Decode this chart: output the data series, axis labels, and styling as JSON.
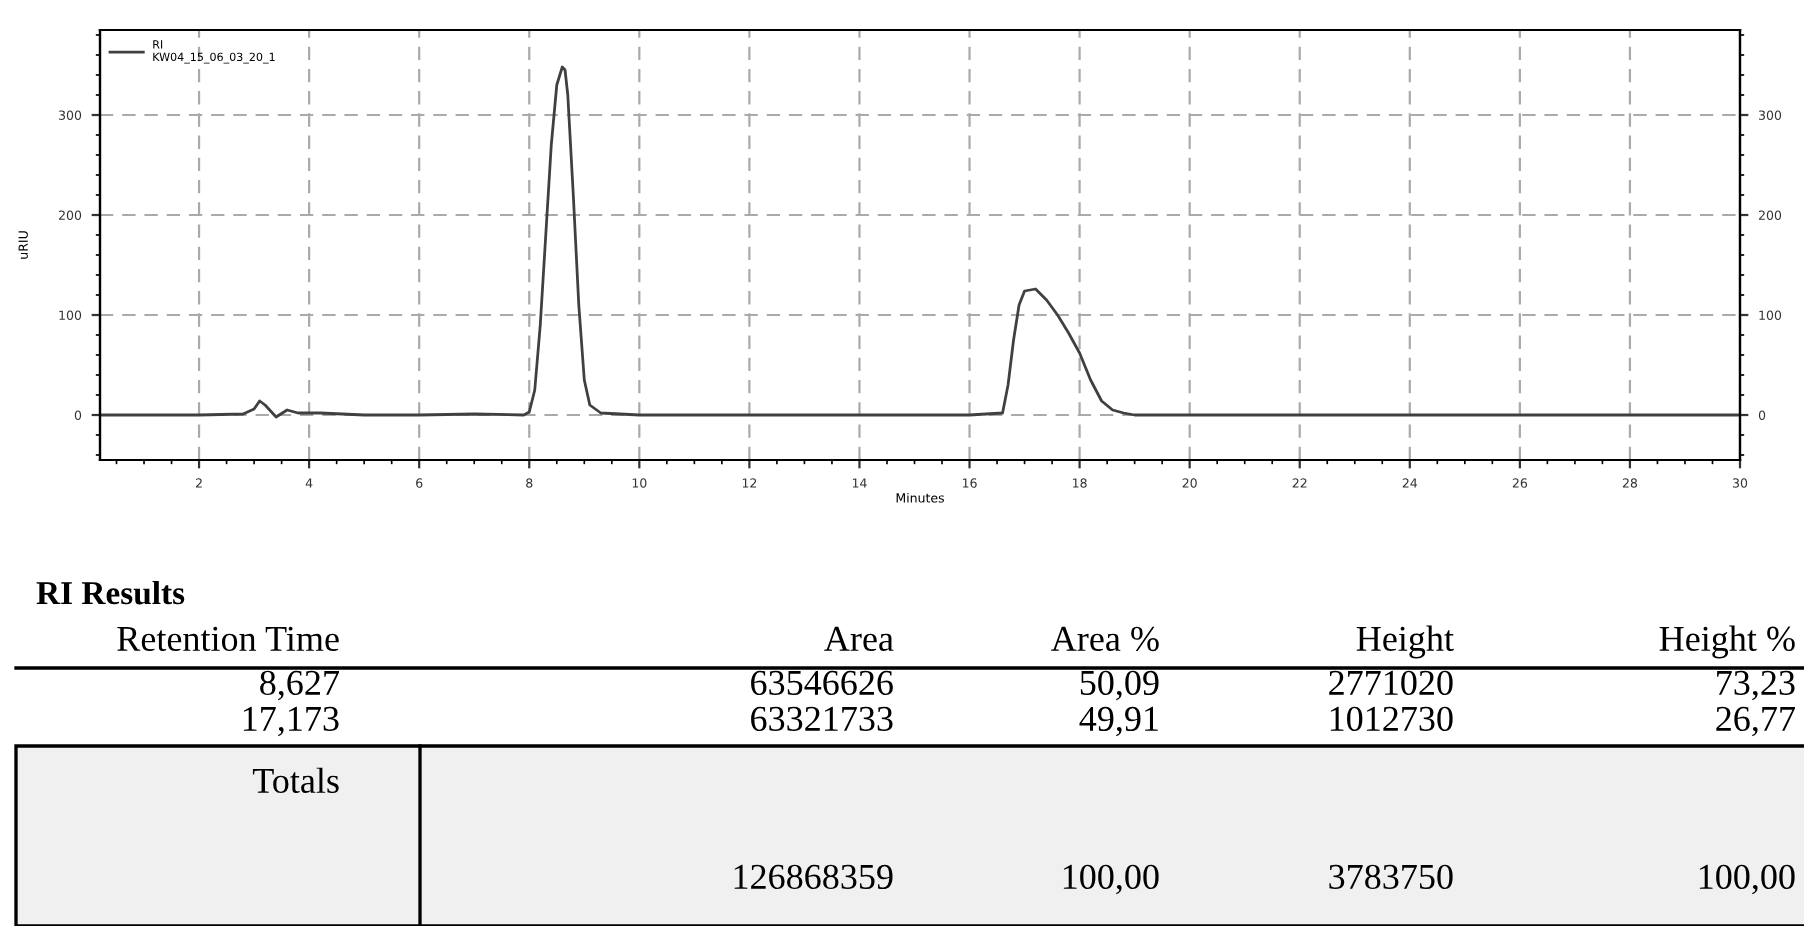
{
  "chart_data": {
    "type": "line",
    "xlabel": "Minutes",
    "ylabel": "uRIU",
    "series": [
      {
        "name": "RI\nKW04_15_06_03_20_1",
        "color": "#404040",
        "x": [
          0.2,
          1.0,
          2.0,
          2.8,
          3.0,
          3.1,
          3.2,
          3.4,
          3.6,
          3.8,
          4.2,
          5.0,
          6.0,
          7.0,
          7.9,
          8.0,
          8.1,
          8.2,
          8.3,
          8.4,
          8.5,
          8.6,
          8.65,
          8.7,
          8.8,
          8.9,
          9.0,
          9.1,
          9.3,
          10.0,
          12.0,
          14.0,
          16.0,
          16.6,
          16.7,
          16.8,
          16.9,
          17.0,
          17.2,
          17.4,
          17.6,
          17.8,
          18.0,
          18.2,
          18.4,
          18.6,
          18.8,
          19.0,
          19.5,
          21.0,
          24.0,
          27.0,
          30.0
        ],
        "values": [
          0,
          0,
          0,
          1,
          6,
          14,
          10,
          -2,
          5,
          2,
          2,
          0,
          0,
          1,
          0,
          3,
          25,
          90,
          180,
          270,
          330,
          348,
          345,
          320,
          220,
          110,
          35,
          10,
          2,
          0,
          0,
          0,
          0,
          2,
          30,
          75,
          110,
          124,
          126,
          115,
          100,
          82,
          62,
          35,
          14,
          5,
          2,
          0,
          0,
          0,
          0,
          0,
          0
        ]
      }
    ],
    "xlim": [
      0.2,
      30
    ],
    "xticks": [
      2,
      4,
      6,
      8,
      10,
      12,
      14,
      16,
      18,
      20,
      22,
      24,
      26,
      28,
      30
    ],
    "ylim": [
      -45,
      385
    ],
    "yticks": [
      0,
      100,
      200,
      300
    ],
    "y2lim": [
      -45,
      385
    ],
    "y2ticks": [
      0,
      100,
      200,
      300
    ],
    "grid": true,
    "legend": "top left",
    "line_style": "solid",
    "marker": "none",
    "annotations": [
      "RI Results",
      "Retention Time",
      "Area",
      "Area %",
      "Height",
      "Height %",
      "8,627",
      "63546626",
      "50,09",
      "2771020",
      "73,23",
      "17,173",
      "63321733",
      "49,91",
      "1012730",
      "26,77",
      "Totals",
      "126868359",
      "100,00",
      "3783750",
      "100,00"
    ]
  }
}
